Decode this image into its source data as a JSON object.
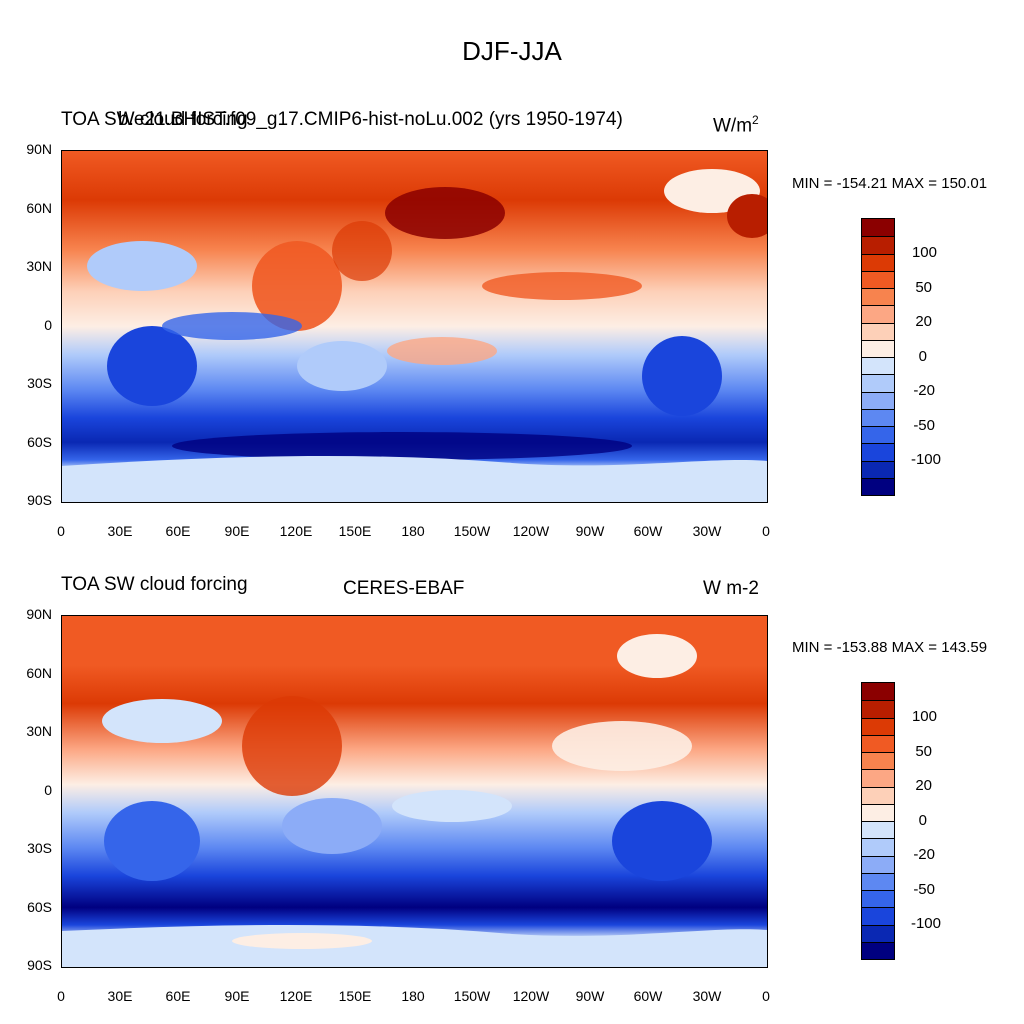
{
  "main_title": "DJF-JJA",
  "chart_data": [
    {
      "type": "heatmap",
      "title_left": "TOA SW cloud forcing",
      "title_center": "b.e21.BHIST.f09_g17.CMIP6-hist-noLu.002 (yrs 1950-1974)",
      "units": "W/m",
      "units_sup": "2",
      "min_max": "MIN = -154.21 MAX = 150.01",
      "lat_labels": [
        "90N",
        "60N",
        "30N",
        "0",
        "30S",
        "60S",
        "90S"
      ],
      "lon_labels": [
        "0",
        "30E",
        "60E",
        "90E",
        "120E",
        "150E",
        "180",
        "150W",
        "120W",
        "90W",
        "60W",
        "30W",
        "0"
      ],
      "colorbar_labels": [
        "100",
        "50",
        "20",
        "0",
        "-20",
        "-50",
        "-100"
      ]
    },
    {
      "type": "heatmap",
      "title_left": "TOA SW cloud forcing",
      "title_center": "CERES-EBAF",
      "units": "W m-2",
      "min_max": "MIN = -153.88 MAX = 143.59",
      "lat_labels": [
        "90N",
        "60N",
        "30N",
        "0",
        "30S",
        "60S",
        "90S"
      ],
      "lon_labels": [
        "0",
        "30E",
        "60E",
        "90E",
        "120E",
        "150E",
        "180",
        "150W",
        "120W",
        "90W",
        "60W",
        "30W",
        "0"
      ],
      "colorbar_labels": [
        "100",
        "50",
        "20",
        "0",
        "-20",
        "-50",
        "-100"
      ]
    }
  ],
  "colors": {
    "scale": [
      "#8b0000",
      "#b81e00",
      "#dc3a05",
      "#f05a23",
      "#f7834e",
      "#fca784",
      "#fdd0b8",
      "#fdeee4",
      "#d3e4fb",
      "#b0cbfa",
      "#8cacf7",
      "#5d88f2",
      "#3565ea",
      "#1a45dc",
      "#0a28b3",
      "#000080"
    ]
  }
}
